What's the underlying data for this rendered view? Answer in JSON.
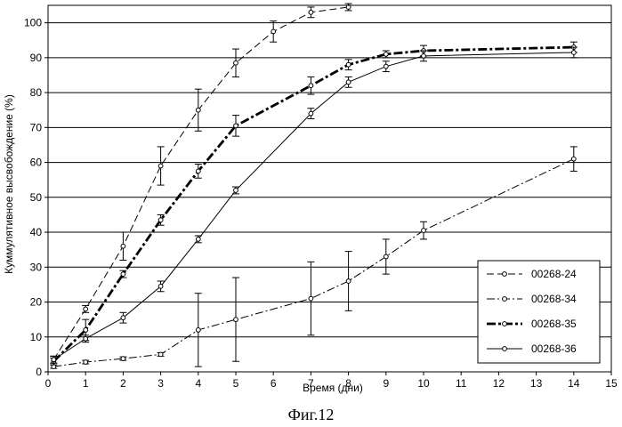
{
  "chart_data": {
    "type": "line",
    "xlabel": "Время (дни)",
    "ylabel": "Куммулятивное высвобождение (%)",
    "xlim": [
      0,
      15
    ],
    "ylim": [
      0,
      105
    ],
    "xticks": [
      0,
      1,
      2,
      3,
      4,
      5,
      6,
      7,
      8,
      9,
      10,
      11,
      12,
      13,
      14,
      15
    ],
    "yticks": [
      0,
      10,
      20,
      30,
      40,
      50,
      60,
      70,
      80,
      90,
      100
    ],
    "grid": "horizontal",
    "legend_position": "bottom-right",
    "series": [
      {
        "name": "00268-24",
        "style": "dashed",
        "color": "#000000",
        "x": [
          0.15,
          1,
          2,
          3,
          4,
          5,
          6,
          7,
          8
        ],
        "y": [
          3.5,
          18,
          36,
          59,
          75,
          88.5,
          97.5,
          103,
          104.5
        ],
        "err": [
          1,
          1,
          4,
          5.5,
          6,
          4,
          3,
          1.5,
          1
        ]
      },
      {
        "name": "00268-34",
        "style": "dash-dot",
        "color": "#000000",
        "x": [
          0.15,
          1,
          2,
          3,
          4,
          5,
          7,
          8,
          9,
          10,
          14
        ],
        "y": [
          1.5,
          2.8,
          3.8,
          5,
          12,
          15,
          21,
          26,
          33,
          40.5,
          61
        ],
        "err": [
          0.5,
          0.5,
          0.5,
          0.5,
          10.5,
          12,
          10.5,
          8.5,
          5,
          2.5,
          3.5
        ]
      },
      {
        "name": "00268-35",
        "style": "bold-dash-dot",
        "color": "#000000",
        "x": [
          0.15,
          1,
          2,
          3,
          4,
          5,
          7,
          8,
          9,
          10,
          14
        ],
        "y": [
          3,
          12,
          28,
          43.5,
          57.5,
          70.5,
          82,
          88,
          91,
          92,
          93
        ],
        "err": [
          1,
          3,
          1,
          1.5,
          2,
          3,
          2.5,
          1.5,
          1,
          1.5,
          1.5
        ]
      },
      {
        "name": "00268-36",
        "style": "solid",
        "color": "#000000",
        "x": [
          0.15,
          1,
          2,
          3,
          4,
          5,
          7,
          8,
          9,
          10,
          14
        ],
        "y": [
          3.5,
          9.5,
          15.5,
          24.5,
          38,
          52,
          74,
          83,
          87.5,
          90.5,
          91.5
        ],
        "err": [
          1,
          1,
          1.5,
          1.5,
          1,
          1,
          1.5,
          1.5,
          1.5,
          1.5,
          1.5
        ]
      }
    ]
  },
  "caption": "Фиг.12"
}
